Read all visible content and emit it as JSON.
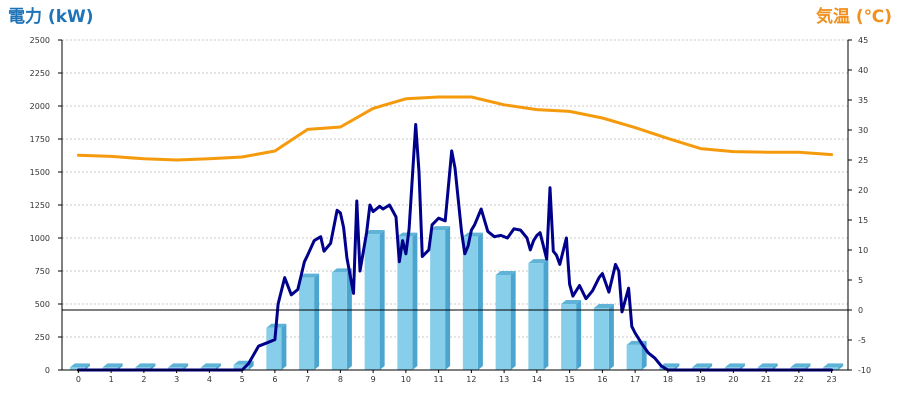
{
  "chart_data": {
    "type": "bar",
    "ylabel_left": "電力 (kW)",
    "ylabel_right": "気温 (℃)",
    "categories": [
      "0",
      "1",
      "2",
      "3",
      "4",
      "5",
      "6",
      "7",
      "8",
      "9",
      "10",
      "11",
      "12",
      "13",
      "14",
      "15",
      "16",
      "17",
      "18",
      "19",
      "20",
      "21",
      "22",
      "23"
    ],
    "ylim_left": [
      0,
      2500
    ],
    "ylim_right": [
      -10,
      45
    ],
    "left_ticks": [
      "0",
      "250",
      "500",
      "750",
      "1000",
      "1250",
      "1500",
      "1750",
      "2000",
      "2250",
      "2500"
    ],
    "right_ticks": [
      "-10",
      "-5",
      "0",
      "5",
      "10",
      "15",
      "20",
      "25",
      "30",
      "35",
      "40",
      "45"
    ],
    "grid": true,
    "series": [
      {
        "kind": "bar",
        "axis": "left",
        "values": [
          20,
          20,
          20,
          20,
          20,
          40,
          320,
          700,
          740,
          1030,
          1010,
          1060,
          1010,
          720,
          810,
          500,
          470,
          190,
          20,
          20,
          20,
          20,
          20,
          20
        ]
      },
      {
        "kind": "line",
        "axis": "left",
        "x": [
          0,
          5,
          5.2,
          5.5,
          5.8,
          6,
          6.1,
          6.3,
          6.5,
          6.7,
          6.9,
          7,
          7.2,
          7.4,
          7.5,
          7.7,
          7.9,
          8,
          8.1,
          8.2,
          8.4,
          8.5,
          8.6,
          8.8,
          8.9,
          9,
          9.2,
          9.3,
          9.5,
          9.7,
          9.8,
          9.9,
          10,
          10.1,
          10.3,
          10.4,
          10.5,
          10.7,
          10.8,
          11,
          11.2,
          11.4,
          11.5,
          11.7,
          11.8,
          11.9,
          12,
          12.1,
          12.3,
          12.5,
          12.7,
          12.9,
          13.1,
          13.3,
          13.5,
          13.7,
          13.8,
          13.9,
          14,
          14.1,
          14.3,
          14.4,
          14.5,
          14.6,
          14.7,
          14.9,
          15,
          15.1,
          15.3,
          15.5,
          15.7,
          15.9,
          16,
          16.2,
          16.4,
          16.5,
          16.6,
          16.8,
          16.9,
          17,
          17.2,
          17.4,
          17.6,
          17.8,
          18,
          18.5,
          19,
          20,
          21,
          22,
          23
        ],
        "values": [
          0,
          0,
          50,
          180,
          210,
          230,
          500,
          700,
          570,
          610,
          820,
          870,
          980,
          1010,
          900,
          960,
          1210,
          1190,
          1080,
          850,
          580,
          1280,
          750,
          1040,
          1250,
          1200,
          1240,
          1220,
          1250,
          1160,
          820,
          980,
          880,
          1070,
          1860,
          1500,
          860,
          910,
          1100,
          1150,
          1130,
          1660,
          1530,
          1050,
          880,
          940,
          1060,
          1100,
          1220,
          1050,
          1010,
          1020,
          1000,
          1070,
          1060,
          1000,
          910,
          980,
          1020,
          1040,
          840,
          1380,
          900,
          870,
          800,
          1000,
          650,
          560,
          640,
          540,
          600,
          700,
          730,
          590,
          800,
          750,
          440,
          620,
          330,
          280,
          200,
          130,
          90,
          30,
          0,
          0,
          0,
          0,
          0,
          0,
          0
        ],
        "color": "#00008b"
      },
      {
        "kind": "line",
        "axis": "right",
        "x": [
          0,
          1,
          2,
          3,
          4,
          5,
          6,
          7,
          8,
          9,
          10,
          11,
          12,
          13,
          14,
          15,
          16,
          17,
          18,
          19,
          20,
          21,
          22,
          23
        ],
        "values": [
          25.8,
          25.6,
          25.2,
          25.0,
          25.2,
          25.5,
          26.5,
          30.1,
          30.5,
          33.6,
          35.2,
          35.5,
          35.5,
          34.2,
          33.4,
          33.1,
          32.0,
          30.4,
          28.6,
          26.9,
          26.4,
          26.3,
          26.3,
          25.9
        ],
        "color": "#f59a0c"
      }
    ],
    "colors": {
      "bar_front": "#87ceeb",
      "bar_side": "#4ba5cf",
      "bar_top": "#5fb3d6",
      "left_label": "#1f73b7",
      "right_label": "#f0901e",
      "grid": "#bbbbbb",
      "axis": "#000000"
    }
  }
}
